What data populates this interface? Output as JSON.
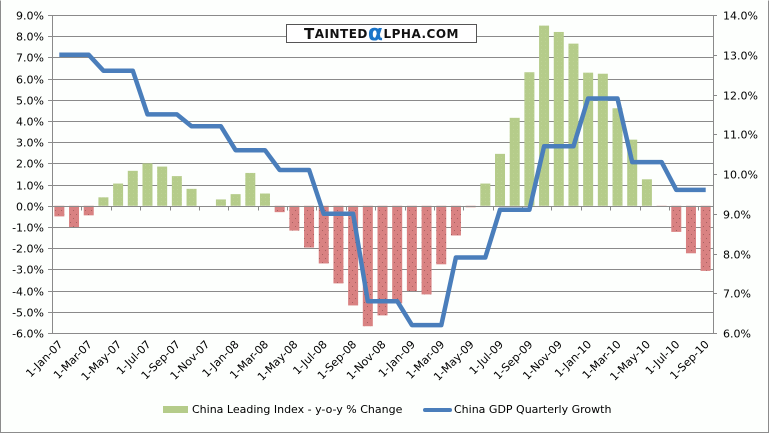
{
  "logo": {
    "text": "TAINTEDαLPHA.COM",
    "part1_initial": "T",
    "part1_rest": "AINTED",
    "alpha": "α",
    "part2_rest": "LPHA.COM",
    "alpha_color": "#1a75c9"
  },
  "chart_data": {
    "type": "bar+line",
    "title": "",
    "xlabel": "",
    "ylabel": "",
    "y2label": "",
    "categories": [
      "1-Jan-07",
      "1-Feb-07",
      "1-Mar-07",
      "1-Apr-07",
      "1-May-07",
      "1-Jun-07",
      "1-Jul-07",
      "1-Aug-07",
      "1-Sep-07",
      "1-Oct-07",
      "1-Nov-07",
      "1-Dec-07",
      "1-Jan-08",
      "1-Feb-08",
      "1-Mar-08",
      "1-Apr-08",
      "1-May-08",
      "1-Jun-08",
      "1-Jul-08",
      "1-Aug-08",
      "1-Sep-08",
      "1-Oct-08",
      "1-Nov-08",
      "1-Dec-08",
      "1-Jan-09",
      "1-Feb-09",
      "1-Mar-09",
      "1-Apr-09",
      "1-May-09",
      "1-Jun-09",
      "1-Jul-09",
      "1-Aug-09",
      "1-Sep-09",
      "1-Oct-09",
      "1-Nov-09",
      "1-Dec-09",
      "1-Jan-10",
      "1-Feb-10",
      "1-Mar-10",
      "1-Apr-10",
      "1-May-10",
      "1-Jun-10",
      "1-Jul-10",
      "1-Aug-10",
      "1-Sep-10"
    ],
    "x_tick_labels": [
      "1-Jan-07",
      "1-Mar-07",
      "1-May-07",
      "1-Jul-07",
      "1-Sep-07",
      "1-Nov-07",
      "1-Jan-08",
      "1-Mar-08",
      "1-May-08",
      "1-Jul-08",
      "1-Sep-08",
      "1-Nov-08",
      "1-Jan-09",
      "1-Mar-09",
      "1-May-09",
      "1-Jul-09",
      "1-Sep-09",
      "1-Nov-09",
      "1-Jan-10",
      "1-Mar-10",
      "1-May-10",
      "1-Jul-10",
      "1-Sep-10"
    ],
    "series": [
      {
        "name": "China Leading Index - y-o-y % Change",
        "type": "bar",
        "axis": "left",
        "positive_color": "#b5cc8a",
        "negative_color": "#d98282",
        "values": [
          -0.5,
          -1.0,
          -0.45,
          0.4,
          1.05,
          1.65,
          2.0,
          1.85,
          1.4,
          0.8,
          0.0,
          0.3,
          0.55,
          1.55,
          0.58,
          -0.3,
          -1.17,
          -1.97,
          -2.72,
          -3.66,
          -4.7,
          -5.68,
          -5.17,
          -4.6,
          -4.02,
          -4.18,
          -2.76,
          -1.4,
          -0.07,
          1.05,
          2.45,
          4.15,
          6.3,
          8.5,
          8.2,
          7.65,
          6.28,
          6.23,
          4.6,
          3.12,
          1.25,
          -0.05,
          -1.23,
          -2.24,
          -3.07
        ]
      },
      {
        "name": "China GDP Quarterly Growth",
        "type": "line",
        "axis": "right",
        "color": "#4a7ebb",
        "values": [
          13.0,
          13.0,
          13.0,
          12.6,
          12.6,
          12.6,
          11.5,
          11.5,
          11.5,
          11.2,
          11.2,
          11.2,
          10.6,
          10.6,
          10.6,
          10.1,
          10.1,
          10.1,
          9.0,
          9.0,
          9.0,
          6.8,
          6.8,
          6.8,
          6.2,
          6.2,
          6.2,
          7.9,
          7.9,
          7.9,
          9.1,
          9.1,
          9.1,
          10.7,
          10.7,
          10.7,
          11.9,
          11.9,
          11.9,
          10.3,
          10.3,
          10.3,
          9.6,
          9.6,
          9.6
        ]
      }
    ],
    "ylim": [
      -6.0,
      9.0
    ],
    "y_ticks": [
      "-6.0%",
      "-5.0%",
      "-4.0%",
      "-3.0%",
      "-2.0%",
      "-1.0%",
      "0.0%",
      "1.0%",
      "2.0%",
      "3.0%",
      "4.0%",
      "5.0%",
      "6.0%",
      "7.0%",
      "8.0%",
      "9.0%"
    ],
    "y2lim": [
      6.0,
      14.0
    ],
    "y2_ticks": [
      "6.0%",
      "7.0%",
      "8.0%",
      "9.0%",
      "10.0%",
      "11.0%",
      "12.0%",
      "13.0%",
      "14.0%"
    ],
    "grid": true,
    "legend_position": "bottom"
  }
}
